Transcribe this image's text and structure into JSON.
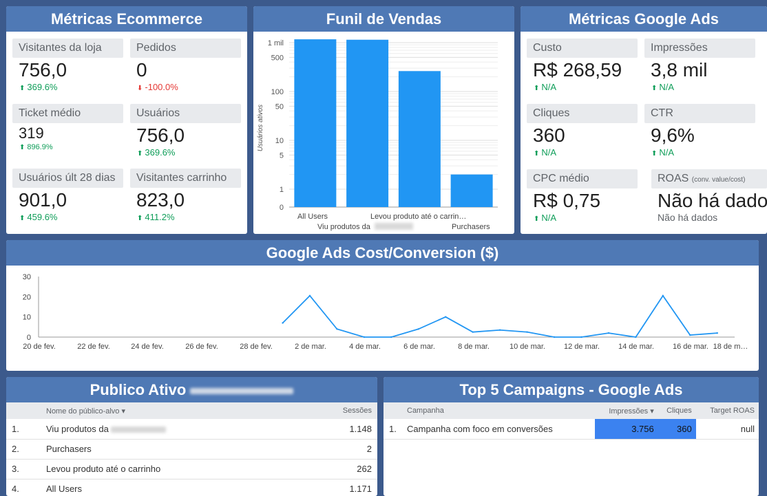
{
  "ecommerce": {
    "title": "Métricas Ecommerce",
    "tiles": [
      {
        "label": "Visitantes da loja",
        "value": "756,0",
        "delta": "369.6%",
        "dir": "up"
      },
      {
        "label": "Pedidos",
        "value": "0",
        "delta": "-100.0%",
        "dir": "down"
      },
      {
        "label": "Ticket médio",
        "value": "319",
        "delta": "896.9%",
        "dir": "up"
      },
      {
        "label": "Usuários",
        "value": "756,0",
        "delta": "369.6%",
        "dir": "up"
      },
      {
        "label": "Usuários últ 28 dias",
        "value": "901,0",
        "delta": "459.6%",
        "dir": "up"
      },
      {
        "label": "Visitantes carrinho",
        "value": "823,0",
        "delta": "411.2%",
        "dir": "up"
      }
    ]
  },
  "funnel": {
    "title": "Funil de Vendas",
    "ylabel": "Usuários ativos",
    "yticks": [
      "1 mil",
      "500",
      "100",
      "50",
      "10",
      "5",
      "1",
      "0"
    ],
    "xlabels": [
      "All Users",
      "Viu produtos da",
      "Levou produto até o carrin…",
      "Purchasers"
    ]
  },
  "googleads": {
    "title": "Métricas Google Ads",
    "tiles": [
      {
        "label": "Custo",
        "value": "R$ 268,59",
        "delta": "N/A"
      },
      {
        "label": "Impressões",
        "value": "3,8 mil",
        "delta": "N/A"
      },
      {
        "label": "Cliques",
        "value": "360",
        "delta": "N/A"
      },
      {
        "label": "CTR",
        "value": "9,6%",
        "delta": "N/A"
      },
      {
        "label": "CPC médio",
        "value": "R$ 0,75",
        "delta": "N/A"
      }
    ],
    "roas": {
      "label": "ROAS",
      "sub": "(conv. value/cost)",
      "value": "Não há dados",
      "note": "Não há dados"
    }
  },
  "costconv": {
    "title": "Google Ads  Cost/Conversion ($)",
    "yticks": [
      "30",
      "20",
      "10",
      "0"
    ],
    "xlabels": [
      "20 de fev.",
      "22 de fev.",
      "24 de fev.",
      "26 de fev.",
      "28 de fev.",
      "2 de mar.",
      "4 de mar.",
      "6 de mar.",
      "8 de mar.",
      "10 de mar.",
      "12 de mar.",
      "14 de mar.",
      "16 de mar.",
      "18 de m…"
    ]
  },
  "publico": {
    "title": "Publico Ativo",
    "col1": "Nome do público-alvo",
    "col2": "Sessões",
    "rows": [
      {
        "n": "1.",
        "name": "Viu produtos da",
        "value": "1.148"
      },
      {
        "n": "2.",
        "name": "Purchasers",
        "value": "2"
      },
      {
        "n": "3.",
        "name": "Levou produto até o carrinho",
        "value": "262"
      },
      {
        "n": "4.",
        "name": "All Users",
        "value": "1.171"
      }
    ]
  },
  "campaigns": {
    "title": "Top 5 Campaigns - Google Ads",
    "cols": [
      "Campanha",
      "Impressões",
      "Cliques",
      "Target ROAS"
    ],
    "rows": [
      {
        "n": "1.",
        "name": "Campanha com foco em conversões",
        "impressions": "3.756",
        "clicks": "360",
        "roas": "null"
      }
    ]
  },
  "chart_data": [
    {
      "type": "bar",
      "title": "Funil de Vendas",
      "ylabel": "Usuários ativos",
      "yscale": "log",
      "categories": [
        "All Users",
        "Viu produtos da",
        "Levou produto até o carrinho",
        "Purchasers"
      ],
      "values": [
        1171,
        1148,
        262,
        2
      ],
      "color": "#2196f3"
    },
    {
      "type": "line",
      "title": "Google Ads  Cost/Conversion ($)",
      "ylim": [
        0,
        30
      ],
      "x": [
        "1 de mar.",
        "2 de mar.",
        "3 de mar.",
        "4 de mar.",
        "5 de mar.",
        "6 de mar.",
        "7 de mar.",
        "8 de mar.",
        "9 de mar.",
        "10 de mar.",
        "11 de mar.",
        "12 de mar.",
        "13 de mar.",
        "14 de mar.",
        "15 de mar.",
        "16 de mar.",
        "17 de mar."
      ],
      "values": [
        7,
        20.5,
        4,
        0,
        0,
        4,
        10,
        2.5,
        3.5,
        2.5,
        0,
        0,
        2,
        0,
        20.5,
        1,
        2
      ],
      "color": "#2196f3"
    }
  ]
}
